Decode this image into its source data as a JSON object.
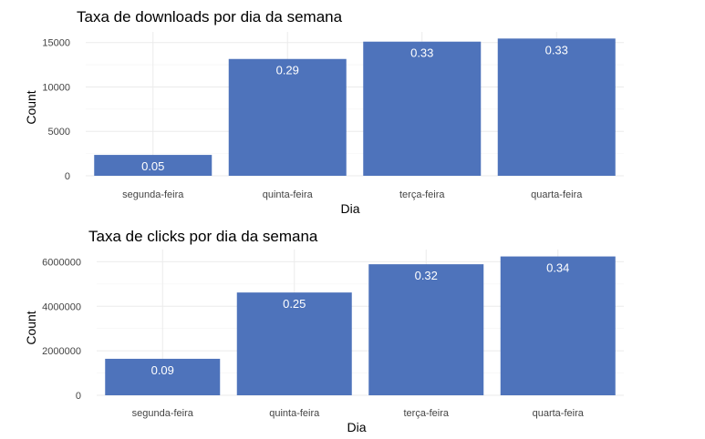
{
  "chart_data": [
    {
      "type": "bar",
      "title": "Taxa de downloads por dia da semana",
      "xlabel": "Dia",
      "ylabel": "Count",
      "categories": [
        "segunda-feira",
        "quinta-feira",
        "terça-feira",
        "quarta-feira"
      ],
      "values": [
        2350,
        13150,
        15100,
        15450
      ],
      "labels": [
        "0.05",
        "0.29",
        "0.33",
        "0.33"
      ],
      "yticks": [
        0,
        5000,
        10000,
        15000
      ],
      "ytick_labels": [
        "0",
        "5000",
        "10000",
        "15000"
      ],
      "ylim": [
        0,
        16200
      ],
      "grid": true,
      "bar_color": "#4e73bb"
    },
    {
      "type": "bar",
      "title": "Taxa de clicks por dia da semana",
      "xlabel": "Dia",
      "ylabel": "Count",
      "categories": [
        "segunda-feira",
        "quinta-feira",
        "terça-feira",
        "quarta-feira"
      ],
      "values": [
        1640000,
        4620000,
        5890000,
        6240000
      ],
      "labels": [
        "0.09",
        "0.25",
        "0.32",
        "0.34"
      ],
      "yticks": [
        0,
        2000000,
        4000000,
        6000000
      ],
      "ytick_labels": [
        "0",
        "2000000",
        "4000000",
        "6000000"
      ],
      "ylim": [
        0,
        6550000
      ],
      "grid": true,
      "bar_color": "#4e73bb"
    }
  ]
}
